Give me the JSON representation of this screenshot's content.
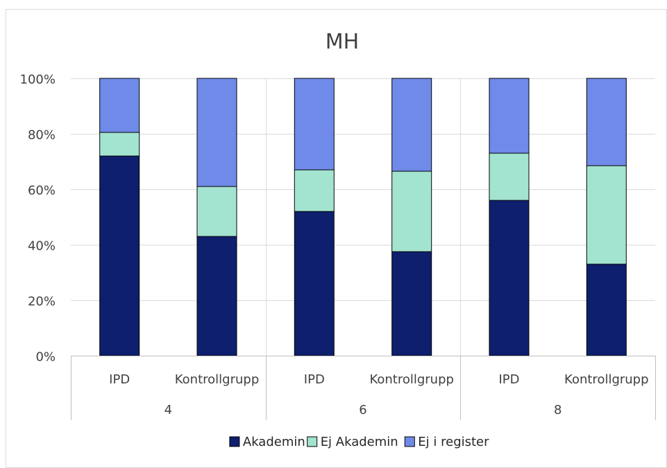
{
  "chart_data": {
    "type": "bar",
    "stacked": true,
    "title": "MH",
    "categories": [
      "IPD",
      "Kontrollgrupp",
      "IPD",
      "Kontrollgrupp",
      "IPD",
      "Kontrollgrupp"
    ],
    "groups": [
      {
        "label": "4",
        "categories": [
          "IPD",
          "Kontrollgrupp"
        ]
      },
      {
        "label": "6",
        "categories": [
          "IPD",
          "Kontrollgrupp"
        ]
      },
      {
        "label": "8",
        "categories": [
          "IPD",
          "Kontrollgrupp"
        ]
      }
    ],
    "series": [
      {
        "name": "Akademin",
        "color": "#0e1f6e",
        "values": [
          72,
          43,
          52,
          37.5,
          56,
          33
        ]
      },
      {
        "name": "Ej Akademin",
        "color": "#a3e4d0",
        "values": [
          8.5,
          18,
          15,
          29,
          17,
          35.5
        ]
      },
      {
        "name": "Ej i register",
        "color": "#6f8ae8",
        "values": [
          19.5,
          39,
          33,
          33.5,
          27,
          31.5
        ]
      }
    ],
    "ylim": [
      0,
      100
    ],
    "yticks": [
      "0%",
      "20%",
      "40%",
      "60%",
      "80%",
      "100%"
    ],
    "grid": true,
    "legend_position": "bottom"
  }
}
